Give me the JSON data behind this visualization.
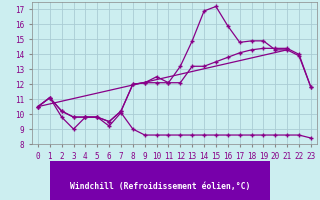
{
  "background_color": "#cceef0",
  "grid_color": "#aaccd4",
  "line_color": "#880088",
  "xlim": [
    -0.5,
    23.5
  ],
  "ylim": [
    8,
    17.5
  ],
  "xlabel": "Windchill (Refroidissement éolien,°C)",
  "xticks": [
    0,
    1,
    2,
    3,
    4,
    5,
    6,
    7,
    8,
    9,
    10,
    11,
    12,
    13,
    14,
    15,
    16,
    17,
    18,
    19,
    20,
    21,
    22,
    23
  ],
  "yticks": [
    8,
    9,
    10,
    11,
    12,
    13,
    14,
    15,
    16,
    17
  ],
  "series1_x": [
    0,
    1,
    2,
    3,
    4,
    5,
    6,
    7,
    8,
    9,
    10,
    11,
    12,
    13,
    14,
    15,
    16,
    17,
    18,
    19,
    20,
    21,
    22,
    23
  ],
  "series1_y": [
    10.5,
    11.1,
    9.8,
    9.0,
    9.8,
    9.8,
    9.2,
    10.1,
    9.0,
    8.6,
    8.6,
    8.6,
    8.6,
    8.6,
    8.6,
    8.6,
    8.6,
    8.6,
    8.6,
    8.6,
    8.6,
    8.6,
    8.6,
    8.4
  ],
  "series2_x": [
    0,
    1,
    2,
    3,
    4,
    5,
    6,
    7,
    8,
    9,
    10,
    11,
    12,
    13,
    14,
    15,
    16,
    17,
    18,
    19,
    20,
    21,
    22,
    23
  ],
  "series2_y": [
    10.5,
    11.1,
    10.2,
    9.8,
    9.8,
    9.8,
    9.5,
    10.2,
    12.0,
    12.1,
    12.1,
    12.1,
    12.1,
    13.2,
    13.2,
    13.5,
    13.8,
    14.1,
    14.3,
    14.4,
    14.4,
    14.4,
    14.0,
    11.8
  ],
  "series3_x": [
    0,
    1,
    2,
    3,
    4,
    5,
    6,
    7,
    8,
    9,
    10,
    11,
    12,
    13,
    14,
    15,
    16,
    17,
    18,
    19,
    20,
    21,
    22,
    23
  ],
  "series3_y": [
    10.5,
    11.1,
    10.2,
    9.8,
    9.8,
    9.8,
    9.5,
    10.2,
    12.0,
    12.1,
    12.5,
    12.1,
    13.2,
    14.9,
    16.9,
    17.2,
    15.9,
    14.8,
    14.9,
    14.9,
    14.3,
    14.3,
    13.9,
    11.8
  ],
  "series4_x": [
    0,
    21
  ],
  "series4_y": [
    10.5,
    14.3
  ],
  "xlabel_bg": "#7700aa",
  "xlabel_color": "white",
  "xlabel_fontsize": 5.8,
  "tick_fontsize": 5.5,
  "linewidth": 0.9,
  "marker": "+",
  "marker_size": 3.5
}
